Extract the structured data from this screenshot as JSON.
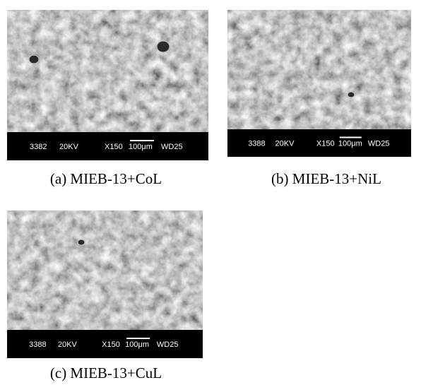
{
  "panels": [
    {
      "caption": "(a) MIEB-13+CoL",
      "info": {
        "id": "3382",
        "voltage": "20KV",
        "magnification": "X150",
        "scale": "100μm",
        "working_distance": "WD25"
      }
    },
    {
      "caption": "(b) MIEB-13+NiL",
      "info": {
        "id": "3388",
        "voltage": "20KV",
        "magnification": "X150",
        "scale": "100μm",
        "working_distance": "WD25"
      }
    },
    {
      "caption": "(c) MIEB-13+CuL",
      "info": {
        "id": "3388",
        "voltage": "20KV",
        "magnification": "X150",
        "scale": "100μm",
        "working_distance": "WD25"
      }
    }
  ]
}
